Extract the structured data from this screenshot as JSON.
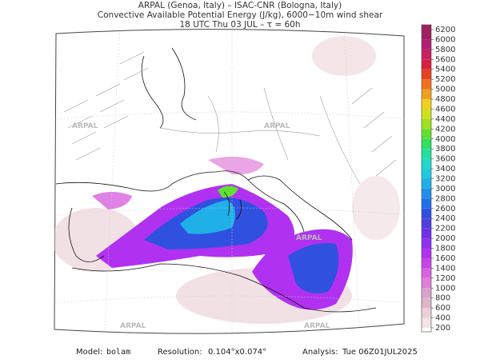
{
  "header": {
    "line1": "ARPAL (Genoa, Italy)  –  ISAC-CNR (Bologna, Italy)",
    "line2": "Convective Available Potential Energy (J/kg), 6000−10m wind shear",
    "line3": "18 UTC Thu 03 JUL  –  τ = 60h"
  },
  "watermark": "ARPAL",
  "colorbar": {
    "ticks": [
      200,
      400,
      600,
      800,
      1000,
      1200,
      1400,
      1600,
      1800,
      2000,
      2200,
      2400,
      2600,
      2800,
      3000,
      3200,
      3400,
      3600,
      3800,
      4000,
      4200,
      4400,
      4600,
      4800,
      5000,
      5200,
      5400,
      5600,
      5800,
      6000,
      6200
    ],
    "colors": [
      "#f3e4e6",
      "#ead0d8",
      "#dfb6c9",
      "#d9a2cb",
      "#e07fd8",
      "#d862e0",
      "#c844e8",
      "#b032f0",
      "#9030f0",
      "#7030e8",
      "#5040e0",
      "#3050e0",
      "#2070e8",
      "#2090e8",
      "#20b0e8",
      "#20c8e0",
      "#20d8c8",
      "#20e0a0",
      "#30e060",
      "#60e030",
      "#a0e020",
      "#d0e020",
      "#f0d020",
      "#f0a020",
      "#f07020",
      "#e84020",
      "#d82040",
      "#c82060",
      "#b02070",
      "#a02060"
    ]
  },
  "footer": {
    "model_label": "Model:",
    "model": "bolam",
    "resolution_label": "Resolution:",
    "resolution": "0.104°x0.074°",
    "analysis_label": "Analysis:",
    "analysis": "Tue 06Z01JUL2025"
  }
}
